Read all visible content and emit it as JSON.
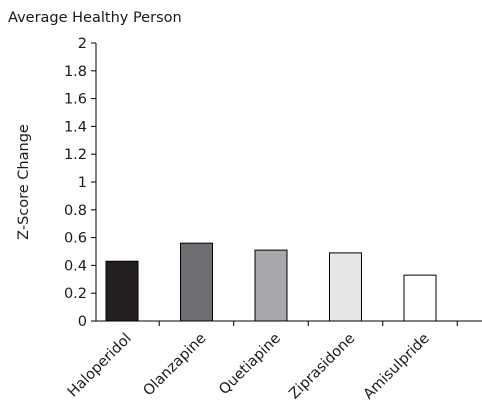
{
  "chart_data": {
    "type": "bar",
    "title": "Average Healthy Person",
    "xlabel": "",
    "ylabel": "Z-Score Change",
    "ylim": [
      0,
      2
    ],
    "yticks": [
      0,
      0.2,
      0.4,
      0.6,
      0.8,
      1,
      1.2,
      1.4,
      1.6,
      1.8,
      2
    ],
    "categories": [
      "Haloperidol",
      "Olanzapine",
      "Quetiapine",
      "Ziprasidone",
      "Amisulpride"
    ],
    "values": [
      0.43,
      0.56,
      0.51,
      0.49,
      0.33
    ],
    "colors": [
      "#231f20",
      "#6d6e71",
      "#a7a9ac",
      "#e6e7e8",
      "#ffffff"
    ],
    "grid": false,
    "legend": "none"
  }
}
